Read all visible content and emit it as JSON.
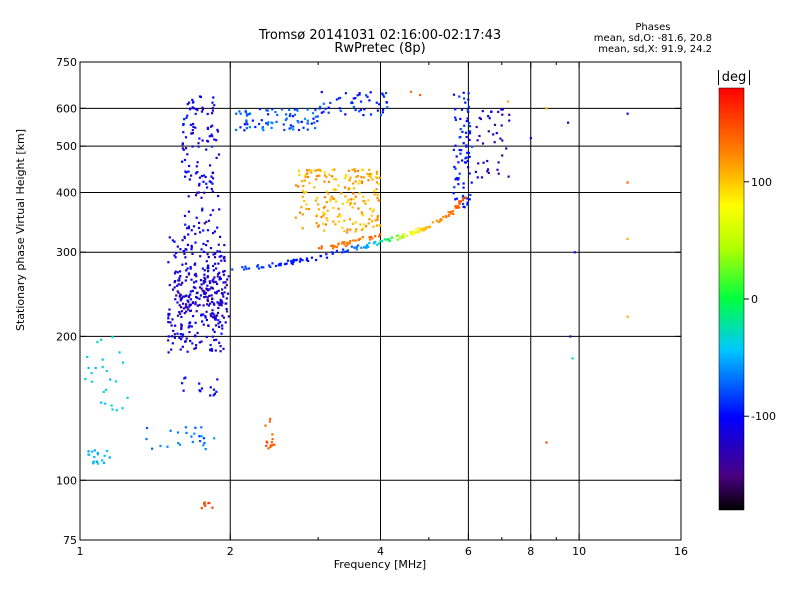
{
  "title_line1": "Tromsø 20141031 02:16:00-02:17:43",
  "title_line2": "RwPretec (8p)",
  "phase_stats": {
    "heading": "Phases",
    "line_o": "mean, sd,O: -81.6, 20.8",
    "line_x": "mean, sd,X:  91.9, 24.2"
  },
  "colorbar": {
    "label": "deg",
    "min": -180,
    "max": 180,
    "ticks": [
      100,
      0,
      -100
    ],
    "tick_labels": [
      "100",
      "0",
      "-100"
    ]
  },
  "chart_data": {
    "type": "scatter",
    "xlabel": "Frequency [MHz]",
    "ylabel": "Stationary phase Virtual Height [km]",
    "x_scale": "log",
    "y_scale": "log",
    "xlim": [
      1,
      16
    ],
    "ylim": [
      75,
      750
    ],
    "x_ticks": [
      1,
      2,
      4,
      6,
      8,
      10,
      16
    ],
    "x_tick_labels": [
      "1",
      "2",
      "4",
      "6",
      "8",
      "10",
      "16"
    ],
    "x_minor_ticks": [
      3,
      5,
      7,
      9
    ],
    "y_ticks": [
      75,
      100,
      200,
      300,
      400,
      500,
      600,
      750
    ],
    "y_tick_labels": [
      "75",
      "100",
      "200",
      "300",
      "400",
      "500",
      "600",
      "750"
    ],
    "grid_x": [
      2,
      4,
      6,
      8,
      10
    ],
    "grid_y": [
      100,
      200,
      300,
      400,
      500,
      600
    ],
    "point_groups": [
      {
        "x": [
          1.5,
          1.95
        ],
        "y": [
          185,
          330
        ],
        "phase": [
          -95,
          -130
        ],
        "count": 240
      },
      {
        "x": [
          1.55,
          2.0
        ],
        "y": [
          210,
          270
        ],
        "phase": [
          -100,
          -150
        ],
        "count": 120
      },
      {
        "x": [
          1.6,
          1.9
        ],
        "y": [
          330,
          640
        ],
        "phase": [
          -90,
          -130
        ],
        "count": 130
      },
      {
        "x": [
          2.05,
          3.0
        ],
        "y": [
          540,
          600
        ],
        "phase": [
          -60,
          -100
        ],
        "count": 80
      },
      {
        "x": [
          3.0,
          4.2
        ],
        "y": [
          580,
          650
        ],
        "phase": [
          -70,
          -110
        ],
        "count": 50
      },
      {
        "x": [
          5.6,
          6.1
        ],
        "y": [
          370,
          650
        ],
        "phase": [
          -80,
          -110
        ],
        "count": 80
      },
      {
        "x": [
          6.2,
          7.3
        ],
        "y": [
          430,
          600
        ],
        "phase": [
          -100,
          -140
        ],
        "count": 40
      },
      {
        "x": [
          2.7,
          4.0
        ],
        "y": [
          330,
          450
        ],
        "phase": [
          90,
          130
        ],
        "count": 200
      },
      {
        "x": [
          1.02,
          1.25
        ],
        "y": [
          140,
          200
        ],
        "phase": [
          -30,
          -50
        ],
        "count": 25
      },
      {
        "x": [
          1.02,
          1.15
        ],
        "y": [
          108,
          116
        ],
        "phase": [
          -40,
          -60
        ],
        "count": 18
      },
      {
        "x": [
          1.35,
          1.9
        ],
        "y": [
          115,
          130
        ],
        "phase": [
          -55,
          -80
        ],
        "count": 25
      },
      {
        "x": [
          1.6,
          1.9
        ],
        "y": [
          150,
          165
        ],
        "phase": [
          -95,
          -110
        ],
        "count": 15
      },
      {
        "x": [
          2.35,
          2.45
        ],
        "y": [
          115,
          135
        ],
        "phase": [
          135,
          150
        ],
        "count": 14
      },
      {
        "x": [
          1.75,
          1.85
        ],
        "y": [
          87,
          90
        ],
        "phase": [
          140,
          155
        ],
        "count": 8
      }
    ],
    "point_curves": [
      {
        "x": [
          2.0,
          2.5,
          3.0,
          3.5,
          4.0,
          4.5,
          5.0,
          5.5,
          5.9
        ],
        "y": [
          275,
          283,
          292,
          305,
          315,
          325,
          340,
          360,
          390
        ],
        "phase": [
          -80,
          -90,
          -100,
          -80,
          -30,
          60,
          110,
          130,
          150
        ],
        "count": 150
      },
      {
        "x": [
          3.0,
          3.3,
          3.6,
          4.0
        ],
        "y": [
          305,
          310,
          318,
          325
        ],
        "phase": [
          140,
          130,
          130,
          140
        ],
        "count": 35
      }
    ],
    "sparse_points": [
      {
        "x": 9.5,
        "y": 560,
        "phase": -120
      },
      {
        "x": 9.8,
        "y": 300,
        "phase": -110
      },
      {
        "x": 9.6,
        "y": 200,
        "phase": -130
      },
      {
        "x": 8.0,
        "y": 520,
        "phase": -110
      },
      {
        "x": 12.5,
        "y": 585,
        "phase": -130
      },
      {
        "x": 12.5,
        "y": 420,
        "phase": 140
      },
      {
        "x": 12.5,
        "y": 320,
        "phase": 110
      },
      {
        "x": 12.5,
        "y": 220,
        "phase": 110
      },
      {
        "x": 9.7,
        "y": 180,
        "phase": -20
      },
      {
        "x": 8.6,
        "y": 120,
        "phase": 150
      },
      {
        "x": 7.2,
        "y": 620,
        "phase": 110
      },
      {
        "x": 8.6,
        "y": 600,
        "phase": 110
      },
      {
        "x": 4.8,
        "y": 640,
        "phase": 140
      },
      {
        "x": 4.6,
        "y": 650,
        "phase": 135
      }
    ]
  }
}
